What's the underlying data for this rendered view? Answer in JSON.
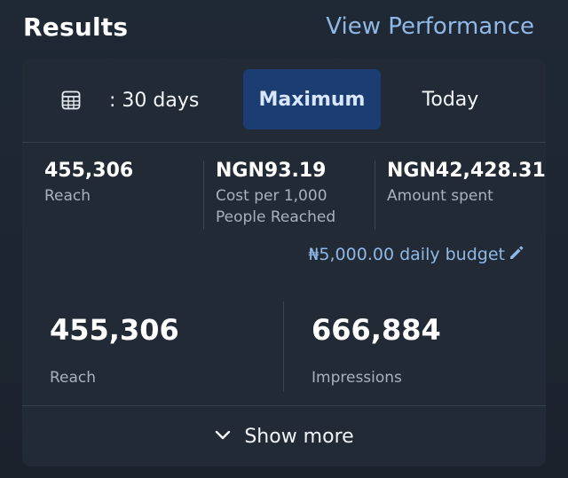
{
  "header": {
    "title": "Results",
    "view_link": "View Performance"
  },
  "date_range": {
    "label": ": 30 days",
    "icon": "calendar-icon"
  },
  "tabs": [
    {
      "label": "Maximum",
      "selected": true
    },
    {
      "label": "Today",
      "selected": false
    }
  ],
  "metrics": [
    {
      "value": "455,306",
      "label": "Reach"
    },
    {
      "value": "NGN93.19",
      "label": "Cost per 1,000 People Reached"
    },
    {
      "value": "NGN42,428.31",
      "label": "Amount spent"
    }
  ],
  "budget": {
    "label": "₦5,000.00 daily budget",
    "icon": "pencil-icon"
  },
  "big_metrics": [
    {
      "value": "455,306",
      "label": "Reach"
    },
    {
      "value": "666,884",
      "label": "Impressions"
    }
  ],
  "show_more": {
    "label": "Show more",
    "icon": "chevron-down-icon"
  },
  "colors": {
    "accent": "#8fb8e6",
    "selected_tab": "#1c3d72",
    "card": "#212a35"
  }
}
